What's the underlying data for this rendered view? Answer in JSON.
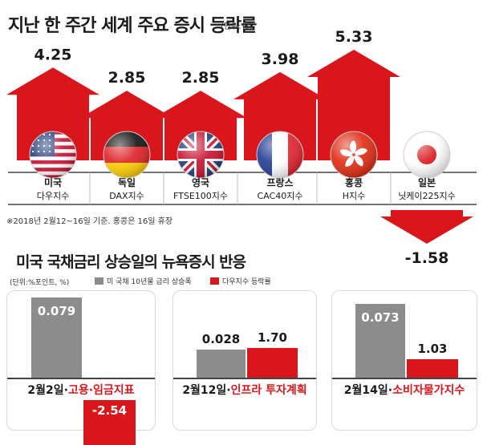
{
  "title": "지난 한 주간 세계 주요 증시 등락률",
  "title_unit": "(단위:%)",
  "footnote": "※2018년 2월12~16일 기준. 홍콩은 16일 휴장",
  "colors": {
    "arrow_red": "#d8161b",
    "treasury_gray": "#8c8c8c",
    "dow_red": "#d8161b"
  },
  "chart_data": [
    {
      "type": "bar",
      "categories": [
        {
          "line1": "미국",
          "line2": "다우지수",
          "flag": "usa-flag"
        },
        {
          "line1": "독일",
          "line2": "DAX지수",
          "flag": "germany-flag"
        },
        {
          "line1": "영국",
          "line2": "FTSE100지수",
          "flag": "uk-flag"
        },
        {
          "line1": "프랑스",
          "line2": "CAC40지수",
          "flag": "france-flag"
        },
        {
          "line1": "홍콩",
          "line2": "H지수",
          "flag": "hongkong-flag"
        },
        {
          "line1": "일본",
          "line2": "닛케이225지수",
          "flag": "japan-flag"
        }
      ],
      "values": [
        4.25,
        2.85,
        2.85,
        3.98,
        5.33,
        -1.58
      ],
      "labels": [
        "4.25",
        "2.85",
        "2.85",
        "3.98",
        "5.33",
        "-1.58"
      ],
      "title": "지난 한 주간 세계 주요 증시 등락률"
    },
    {
      "type": "bar",
      "title": "미국 국채금리 상승일의 뉴욕증시 반응",
      "unit": "(단위:%포인트, %)",
      "series_names": [
        "미 국채 10년물 금리 상승폭",
        "다우지수 등락률"
      ],
      "groups": [
        {
          "date": "2월2일·",
          "event": "고용·임금지표",
          "treasury": 0.079,
          "treasury_label": "0.079",
          "dow": -2.54,
          "dow_label": "-2.54"
        },
        {
          "date": "2월12일·",
          "event": "인프라 투자계획",
          "treasury": 0.028,
          "treasury_label": "0.028",
          "dow": 1.7,
          "dow_label": "1.70"
        },
        {
          "date": "2월14일·",
          "event": "소비자물가지수",
          "treasury": 0.073,
          "treasury_label": "0.073",
          "dow": 1.03,
          "dow_label": "1.03"
        }
      ]
    }
  ]
}
